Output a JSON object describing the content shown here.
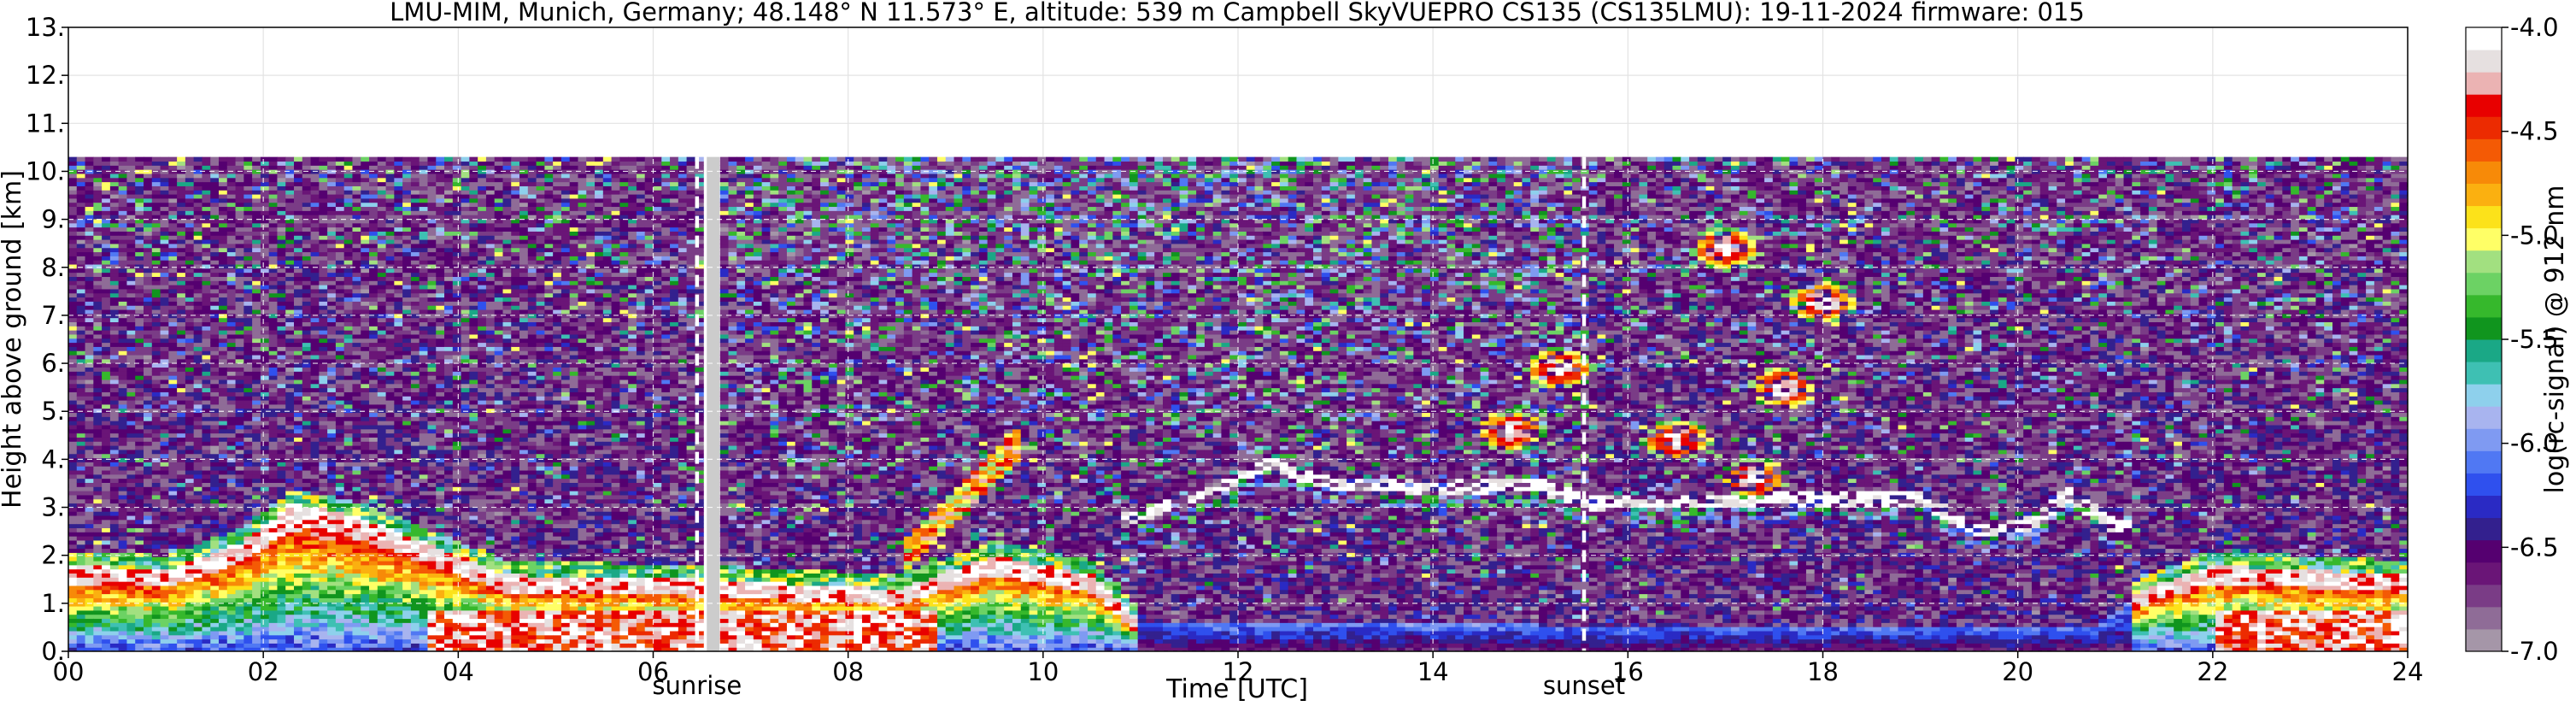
{
  "chart_data": {
    "type": "heatmap",
    "title": "LMU-MIM, Munich, Germany; 48.148° N 11.573° E, altitude: 539 m    Campbell SkyVUEPRO CS135 (CS135LMU): 19-11-2024    firmware: 015",
    "xlabel": "Time [UTC]",
    "ylabel": "Height above ground [km]",
    "xlim": [
      0,
      24
    ],
    "ylim": [
      0,
      13
    ],
    "x_ticks": [
      0,
      2,
      4,
      6,
      8,
      10,
      12,
      14,
      16,
      18,
      20,
      22,
      24
    ],
    "x_tick_labels": [
      "00",
      "02",
      "04",
      "06",
      "08",
      "10",
      "12",
      "14",
      "16",
      "18",
      "20",
      "22",
      "24"
    ],
    "y_ticks": [
      0,
      1,
      2,
      3,
      4,
      5,
      6,
      7,
      8,
      9,
      10,
      11,
      12,
      13
    ],
    "y_tick_labels": [
      "0.",
      "1.",
      "2.",
      "3.",
      "4.",
      "5.",
      "6.",
      "7.",
      "8.",
      "9.",
      "10.",
      "11.",
      "12.",
      "13."
    ],
    "grid": true,
    "measurement_top_km": 10.3,
    "data_gap": {
      "start": 6.55,
      "end": 6.68
    },
    "events": [
      {
        "label": "sunrise",
        "time": 6.45
      },
      {
        "label": "sunset",
        "time": 15.55
      }
    ],
    "colorbar": {
      "label": "log(rc-signal) @ 912 nm",
      "range": [
        -7.0,
        -4.0
      ],
      "ticks": [
        -4.0,
        -4.5,
        -5.0,
        -5.5,
        -6.0,
        -6.5,
        -7.0
      ],
      "tick_labels": [
        "-4.0",
        "-4.5",
        "-5.0",
        "-5.5",
        "-6.0",
        "-6.5",
        "-7.0"
      ],
      "colors": [
        "#a596a8",
        "#8f6c97",
        "#7a3c86",
        "#6a1577",
        "#550070",
        "#33208e",
        "#2a2ac4",
        "#2f50ee",
        "#5078f3",
        "#7f9af2",
        "#a8b4ef",
        "#8ed0ec",
        "#3ec0b3",
        "#1aa886",
        "#10951e",
        "#36b82c",
        "#6cd264",
        "#a2e080",
        "#ffff66",
        "#fce21a",
        "#fbb010",
        "#f78a08",
        "#f45a05",
        "#ec2b01",
        "#e80000",
        "#ebb3b3",
        "#e6e0e0",
        "#ffffff"
      ]
    },
    "layers": [
      {
        "name": "boundary-layer",
        "points": [
          [
            0,
            1.8
          ],
          [
            1,
            1.7
          ],
          [
            1.8,
            2.3
          ],
          [
            2.3,
            3.1
          ],
          [
            3,
            2.8
          ],
          [
            4.5,
            1.6
          ],
          [
            6.5,
            1.5
          ],
          [
            8.5,
            1.3
          ],
          [
            9.5,
            2.0
          ],
          [
            10.5,
            1.6
          ],
          [
            11,
            0.6
          ],
          [
            20.8,
            0.5
          ],
          [
            21.3,
            1.3
          ],
          [
            22,
            1.8
          ],
          [
            24,
            1.6
          ]
        ]
      },
      {
        "name": "low-cloud-tops",
        "points": [
          [
            11.0,
            2.8
          ],
          [
            11.5,
            3.2
          ],
          [
            12.0,
            3.6
          ],
          [
            12.3,
            3.9
          ],
          [
            13.0,
            3.5
          ],
          [
            14.0,
            3.4
          ],
          [
            15.0,
            3.5
          ],
          [
            15.6,
            3.1
          ],
          [
            19.0,
            3.2
          ],
          [
            19.6,
            2.5
          ],
          [
            20.2,
            2.7
          ],
          [
            20.5,
            3.3
          ],
          [
            21.0,
            2.6
          ]
        ]
      },
      {
        "name": "cirrus-evening",
        "points": [
          [
            14.8,
            4.6
          ],
          [
            15.3,
            5.9
          ],
          [
            16.5,
            4.4
          ],
          [
            17.3,
            3.6
          ],
          [
            17.6,
            5.5
          ],
          [
            18.0,
            7.3
          ],
          [
            17.0,
            8.4
          ]
        ]
      }
    ]
  }
}
